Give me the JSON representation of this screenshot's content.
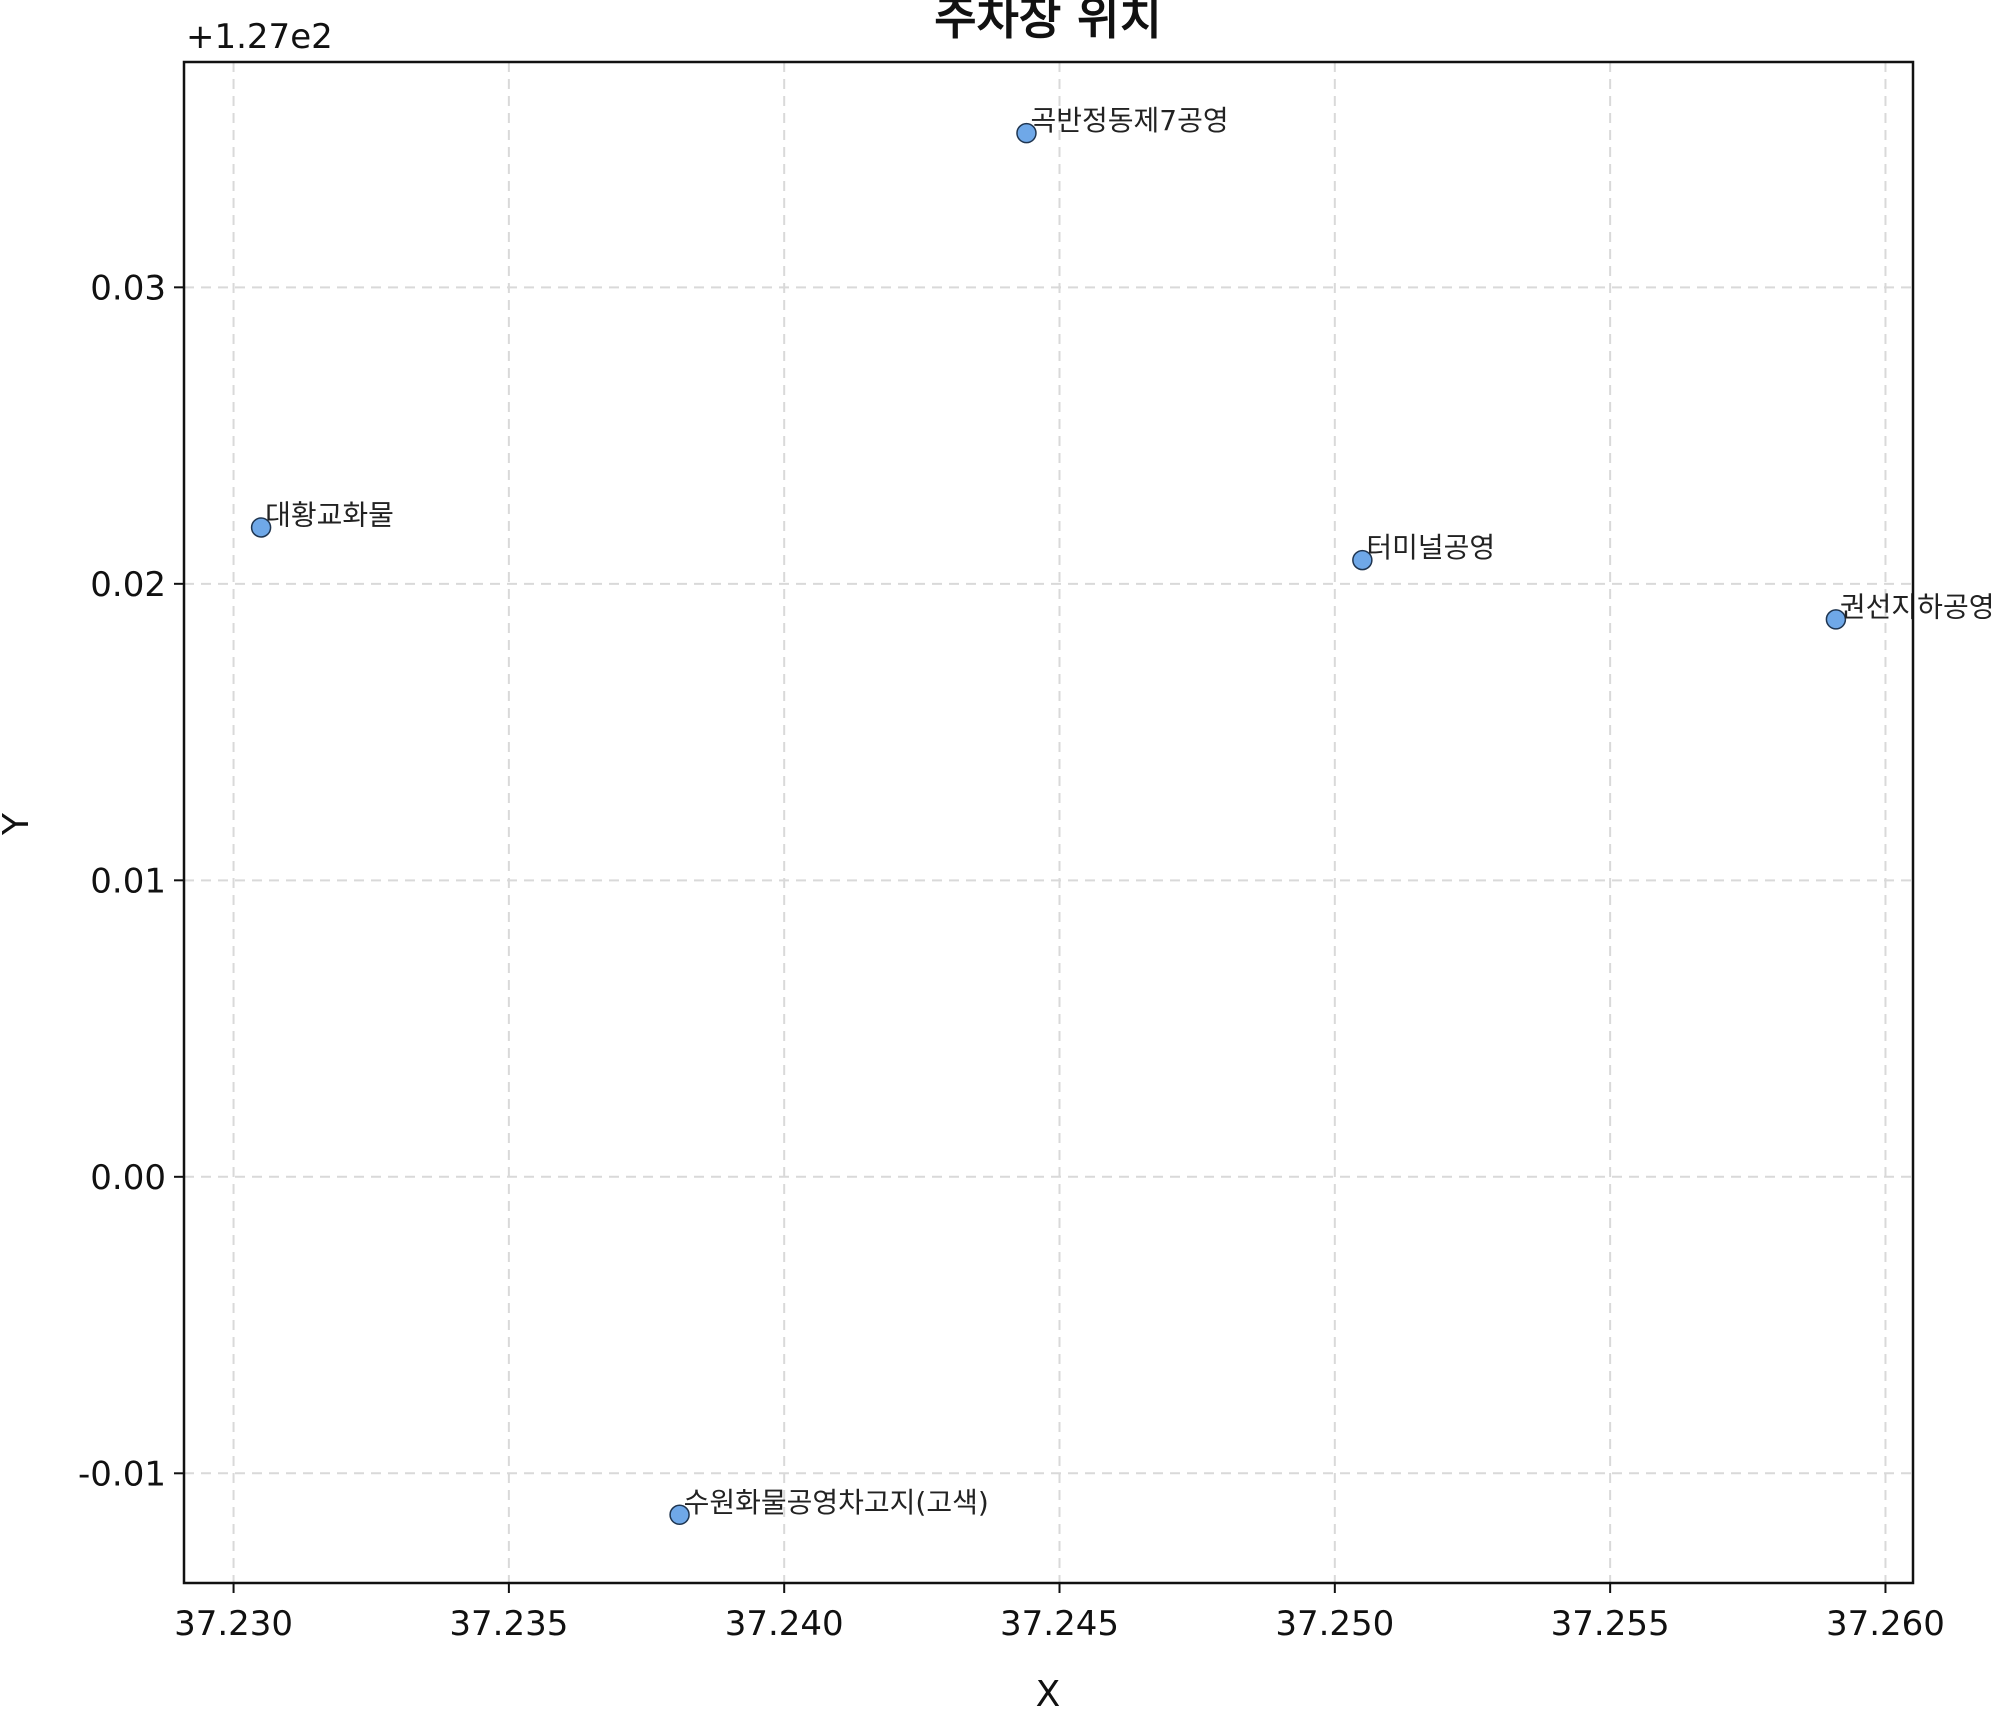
{
  "chart_data": {
    "type": "scatter",
    "title": "주차장 위치",
    "xlabel": "X",
    "ylabel": "Y",
    "y_offset_text": "+1.27e2",
    "xlim": [
      37.2291,
      37.2605
    ],
    "ylim": [
      -0.0137,
      0.0376
    ],
    "y_offset": 127,
    "xticks": [
      37.23,
      37.235,
      37.24,
      37.245,
      37.25,
      37.255,
      37.26
    ],
    "xtick_labels": [
      "37.230",
      "37.235",
      "37.240",
      "37.245",
      "37.250",
      "37.255",
      "37.260"
    ],
    "yticks": [
      -0.01,
      0.0,
      0.01,
      0.02,
      0.03
    ],
    "ytick_labels": [
      "-0.01",
      "0.00",
      "0.01",
      "0.02",
      "0.03"
    ],
    "grid": true,
    "marker_color": "#6fa8e8",
    "points": [
      {
        "label": "곡반정동제7공영",
        "x": 37.2444,
        "y": 127.0352
      },
      {
        "label": "대황교화물",
        "x": 37.2305,
        "y": 127.0219
      },
      {
        "label": "터미널공영",
        "x": 37.2505,
        "y": 127.0208
      },
      {
        "label": "권선지하공영",
        "x": 37.2591,
        "y": 127.0188
      },
      {
        "label": "수원화물공영차고지(고색)",
        "x": 37.2381,
        "y": 126.9886
      }
    ]
  }
}
